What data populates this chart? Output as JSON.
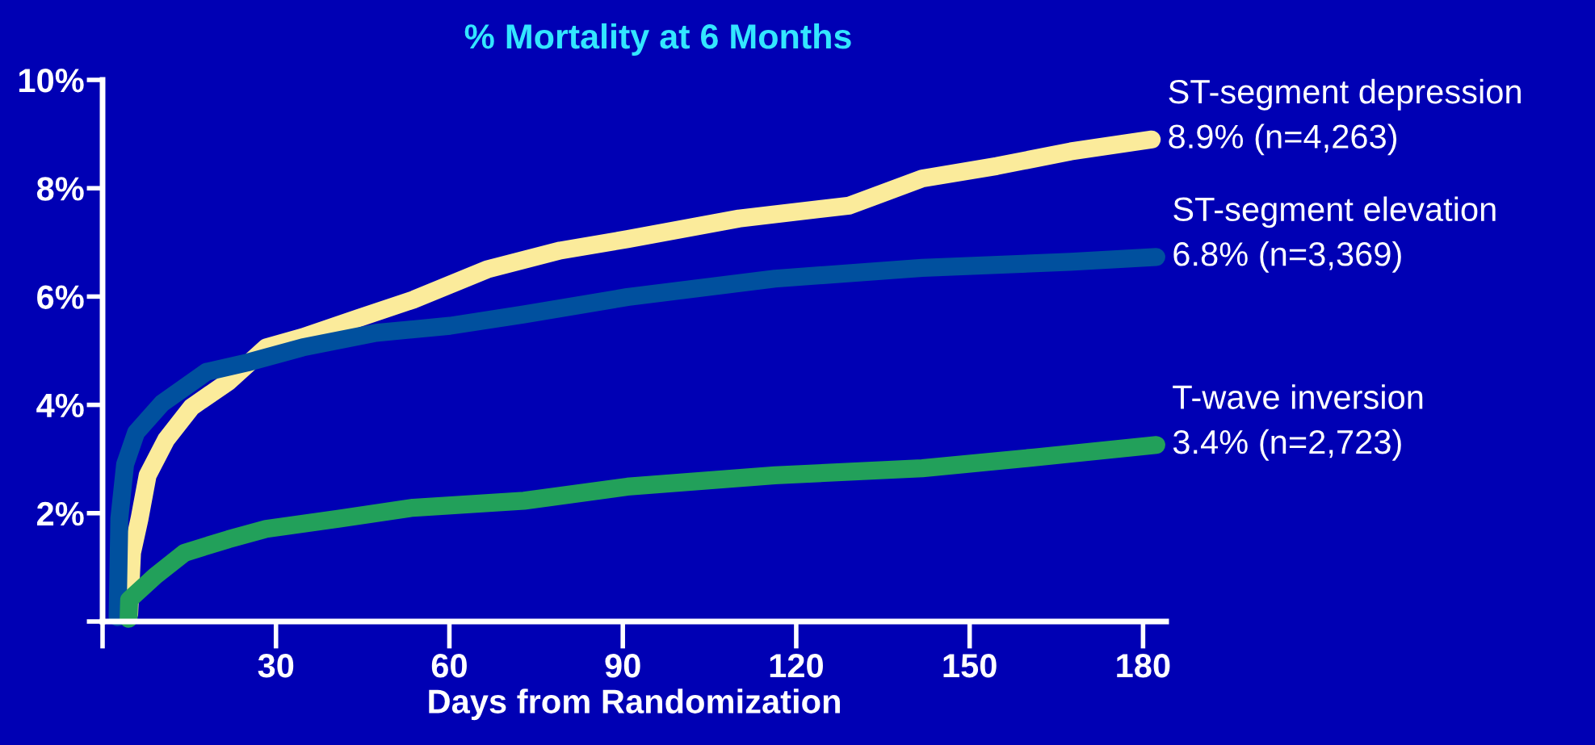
{
  "chart_data": {
    "type": "line",
    "title": "% Mortality at 6 Months",
    "xlabel": "Days from Randomization",
    "xlim": [
      0,
      184
    ],
    "ylim": [
      0,
      10
    ],
    "xticks": [
      {
        "value": 0,
        "label": null
      },
      30,
      60,
      90,
      120,
      150,
      180
    ],
    "yticks": [
      {
        "value": 0,
        "label": null
      },
      {
        "value": 2,
        "label": "2%"
      },
      {
        "value": 4,
        "label": "4%"
      },
      {
        "value": 6,
        "label": "6%"
      },
      {
        "value": 8,
        "label": "8%"
      },
      {
        "value": 10,
        "label": "10%"
      }
    ],
    "line_style": "solid",
    "series": [
      {
        "name": "ST-segment depression",
        "color": "#fbeb9b",
        "x": [
          4.6,
          5.1,
          6.4,
          7.8,
          11.0,
          15.4,
          21.8,
          28.3,
          34.6,
          44.2,
          53.7,
          66.5,
          79.2,
          90.8,
          110.1,
          129.2,
          141.8,
          154.7,
          167.5,
          181.5
        ],
        "values": [
          0.14,
          1.27,
          1.9,
          2.7,
          3.36,
          3.96,
          4.43,
          5.06,
          5.25,
          5.6,
          5.94,
          6.5,
          6.85,
          7.06,
          7.44,
          7.68,
          8.18,
          8.41,
          8.68,
          8.9
        ]
      },
      {
        "name": "ST-segment elevation",
        "color": "#00509e",
        "x": [
          2.6,
          2.9,
          3.9,
          5.8,
          10.3,
          18.0,
          25.0,
          34.6,
          47.3,
          60.1,
          72.9,
          90.8,
          116.3,
          141.8,
          167.4,
          182.3
        ],
        "values": [
          0.08,
          1.9,
          2.9,
          3.49,
          4.03,
          4.61,
          4.78,
          5.06,
          5.33,
          5.46,
          5.67,
          5.99,
          6.33,
          6.53,
          6.64,
          6.73
        ]
      },
      {
        "name": "T-wave inversion",
        "color": "#22a05a",
        "x": [
          4.5,
          4.6,
          9.1,
          14.2,
          21.8,
          28.3,
          41.0,
          53.7,
          72.9,
          90.8,
          116.3,
          141.8,
          161.2,
          182.3
        ],
        "values": [
          0.05,
          0.4,
          0.84,
          1.27,
          1.52,
          1.71,
          1.9,
          2.1,
          2.23,
          2.49,
          2.7,
          2.83,
          3.03,
          3.26
        ]
      }
    ],
    "annotations": [
      "8.9% (n=4,263)",
      "6.8% (n=3,369)",
      "3.4% (n=2,723)"
    ]
  }
}
